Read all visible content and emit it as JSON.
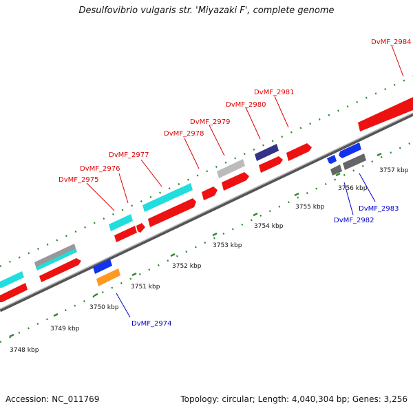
{
  "title": "Desulfovibrio vulgaris str. 'Miyazaki F', complete genome",
  "footer": {
    "accession": "Accession: NC_011769",
    "info": "Topology: circular; Length: 4,040,304 bp; Genes: 3,256"
  },
  "colors": {
    "backbone": "#6e6e6e",
    "tick": "#2e8b2e",
    "forward_label": "#dd0000",
    "reverse_label": "#0000cc",
    "cds_red": "#ee1111",
    "cyan": "#22dddd",
    "gray": "#aaaaaa",
    "navy": "#333388",
    "blue": "#1133ee",
    "orange": "#ff9922",
    "darkgray": "#666666"
  },
  "scale_labels": [
    "3748 kbp",
    "3749 kbp",
    "3750 kbp",
    "3751 kbp",
    "3752 kbp",
    "3753 kbp",
    "3754 kbp",
    "3755 kbp",
    "3756 kbp",
    "3757 kbp"
  ],
  "gene_labels": {
    "forward": [
      "DvMF_2975",
      "DvMF_2976",
      "DvMF_2977",
      "DvMF_2978",
      "DvMF_2979",
      "DvMF_2980",
      "DvMF_2981",
      "DvMF_2984"
    ],
    "reverse": [
      "DvMF_2974",
      "DvMF_2982",
      "DvMF_2983"
    ]
  }
}
